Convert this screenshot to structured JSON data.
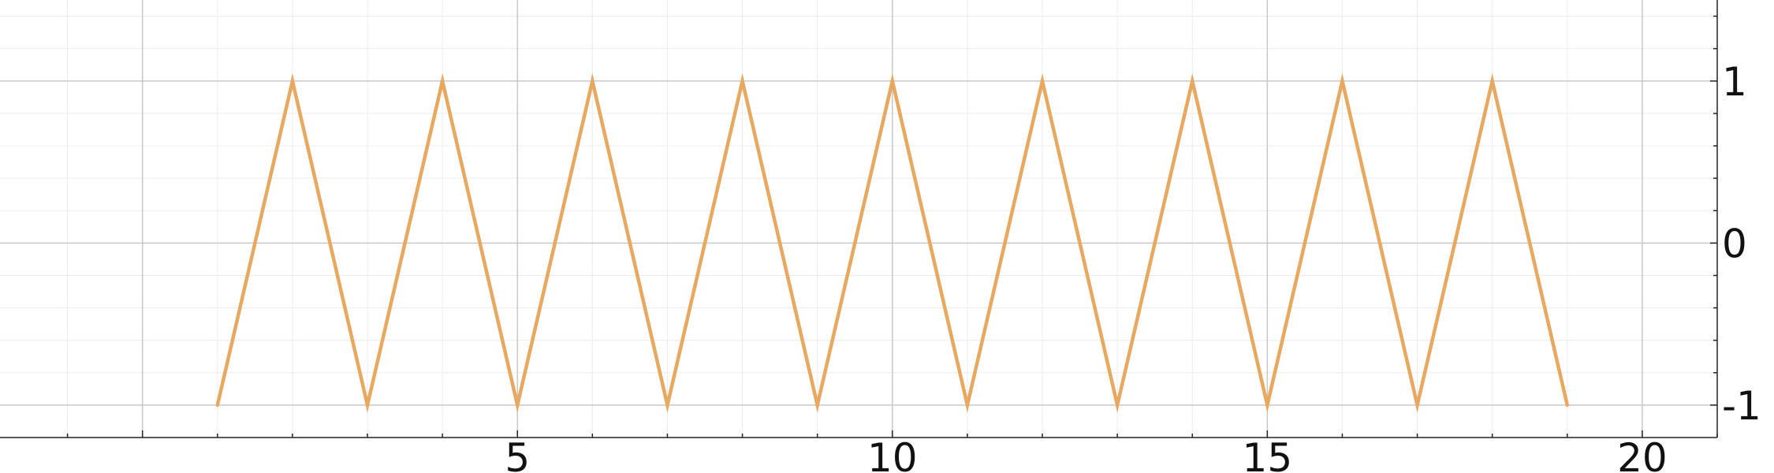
{
  "chart_data": {
    "type": "line",
    "title": "",
    "xlabel": "",
    "ylabel": "",
    "xlim": [
      -1.9,
      21.0
    ],
    "ylim": [
      -1.2,
      1.5
    ],
    "x_ticks": [
      5,
      10,
      15,
      20
    ],
    "x_tick_labels": [
      "5",
      "10",
      "15",
      "20"
    ],
    "y_ticks": [
      -1,
      0,
      1
    ],
    "y_tick_labels": [
      "-1",
      "0",
      "1"
    ],
    "y_axis_position": "right",
    "grid": true,
    "minor_grid": true,
    "legend": "none",
    "series": [
      {
        "color": "#E8A860",
        "x": [
          1,
          2,
          3,
          4,
          5,
          6,
          7,
          8,
          9,
          10,
          11,
          12,
          13,
          14,
          15,
          16,
          17,
          18,
          19
        ],
        "y": [
          -1,
          1,
          -1,
          1,
          -1,
          1,
          -1,
          1,
          -1,
          1,
          -1,
          1,
          -1,
          1,
          -1,
          1,
          -1,
          1,
          -1
        ]
      }
    ]
  },
  "colors": {
    "background": "#ffffff",
    "major_grid": "#c8c8c8",
    "minor_grid": "#ececec",
    "axis": "#222222",
    "series": "#E8A860"
  }
}
